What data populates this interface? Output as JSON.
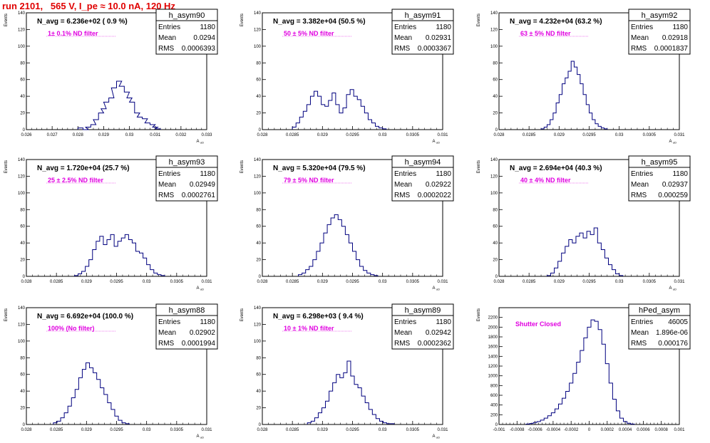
{
  "page": {
    "title": "run 2101,   565 V, I_pe ≈ 10.0 nA, 120 Hz"
  },
  "chart_data": [
    {
      "type": "histogram",
      "name": "h_asym90",
      "stats": {
        "entries_label": "Entries",
        "entries": "1180",
        "mean_label": "Mean",
        "mean": "0.0294",
        "rms_label": "RMS",
        "rms": "0.0006393"
      },
      "navg_text": "N_avg = 6.236e+02 ( 0.9 %)",
      "filter_text": "1± 0.1% ND filter",
      "xlabel": "A_uD",
      "ylabel": "Events",
      "xlim": [
        0.026,
        0.033
      ],
      "ylim": [
        0,
        140
      ],
      "xticks": [
        "0.026",
        "0.027",
        "0.028",
        "0.029",
        "0.03",
        "0.031",
        "0.032",
        "0.033"
      ],
      "yticks": [
        "0",
        "20",
        "40",
        "60",
        "80",
        "100",
        "120",
        "140"
      ],
      "bins": [
        0.028,
        0.0282,
        0.0283,
        0.0285,
        0.0286,
        0.0288,
        0.0289,
        0.029,
        0.0292,
        0.0293,
        0.0295,
        0.0296,
        0.0298,
        0.0299,
        0.03,
        0.0302,
        0.0303,
        0.0305,
        0.0306,
        0.0308,
        0.0309,
        0.031
      ],
      "counts": [
        2,
        0,
        3,
        6,
        12,
        20,
        25,
        33,
        38,
        50,
        58,
        52,
        45,
        38,
        33,
        20,
        15,
        13,
        8,
        6,
        3,
        1
      ]
    },
    {
      "type": "histogram",
      "name": "h_asym91",
      "stats": {
        "entries_label": "Entries",
        "entries": "1180",
        "mean_label": "Mean",
        "mean": "0.02931",
        "rms_label": "RMS",
        "rms": "0.0003367"
      },
      "navg_text": "N_avg = 3.382e+04 (50.5 %)",
      "filter_text": "50 ± 5% ND filter",
      "xlabel": "A_uD",
      "ylabel": "Events",
      "xlim": [
        0.028,
        0.031
      ],
      "ylim": [
        0,
        140
      ],
      "xticks": [
        "0.028",
        "0.0285",
        "0.029",
        "0.0295",
        "0.03",
        "0.0305",
        "0.031"
      ],
      "yticks": [
        "0",
        "20",
        "40",
        "60",
        "80",
        "100",
        "120",
        "140"
      ],
      "bins": [
        0.0285,
        0.02856,
        0.02862,
        0.02868,
        0.02874,
        0.0288,
        0.02886,
        0.02892,
        0.02898,
        0.02904,
        0.0291,
        0.02916,
        0.02922,
        0.02928,
        0.02934,
        0.0294,
        0.02946,
        0.02952,
        0.02958,
        0.02964,
        0.0297,
        0.02976,
        0.02982,
        0.02988,
        0.02994,
        0.03
      ],
      "counts": [
        3,
        8,
        15,
        22,
        30,
        40,
        46,
        40,
        30,
        28,
        35,
        44,
        30,
        20,
        26,
        42,
        48,
        40,
        36,
        28,
        20,
        12,
        8,
        4,
        2,
        1
      ]
    },
    {
      "type": "histogram",
      "name": "h_asym92",
      "stats": {
        "entries_label": "Entries",
        "entries": "1180",
        "mean_label": "Mean",
        "mean": "0.02918",
        "rms_label": "RMS",
        "rms": "0.0001837"
      },
      "navg_text": "N_avg = 4.232e+04 (63.2 %)",
      "filter_text": "63 ± 5% ND filter",
      "xlabel": "A_uD",
      "ylabel": "Events",
      "xlim": [
        0.028,
        0.031
      ],
      "ylim": [
        0,
        140
      ],
      "xticks": [
        "0.028",
        "0.0285",
        "0.029",
        "0.0295",
        "0.03",
        "0.0305",
        "0.031"
      ],
      "yticks": [
        "0",
        "20",
        "40",
        "60",
        "80",
        "100",
        "120",
        "140"
      ],
      "bins": [
        0.0287,
        0.02875,
        0.0288,
        0.02885,
        0.0289,
        0.02895,
        0.029,
        0.02905,
        0.0291,
        0.02915,
        0.0292,
        0.02925,
        0.0293,
        0.02935,
        0.0294,
        0.02945,
        0.0295,
        0.02955,
        0.0296,
        0.02965,
        0.0297,
        0.02975
      ],
      "counts": [
        1,
        3,
        6,
        12,
        20,
        32,
        42,
        55,
        62,
        70,
        82,
        75,
        66,
        55,
        42,
        30,
        20,
        12,
        7,
        4,
        2,
        1
      ]
    },
    {
      "type": "histogram",
      "name": "h_asym93",
      "stats": {
        "entries_label": "Entries",
        "entries": "1180",
        "mean_label": "Mean",
        "mean": "0.02949",
        "rms_label": "RMS",
        "rms": "0.0002761"
      },
      "navg_text": "N_avg = 1.720e+04 (25.7 %)",
      "filter_text": "25 ± 2.5% ND filter",
      "xlabel": "A_uD",
      "ylabel": "Events",
      "xlim": [
        0.028,
        0.031
      ],
      "ylim": [
        0,
        140
      ],
      "xticks": [
        "0.028",
        "0.0285",
        "0.029",
        "0.0295",
        "0.03",
        "0.0305",
        "0.031"
      ],
      "yticks": [
        "0",
        "20",
        "40",
        "60",
        "80",
        "100",
        "120",
        "140"
      ],
      "bins": [
        0.0288,
        0.02886,
        0.02892,
        0.02898,
        0.02904,
        0.0291,
        0.02916,
        0.02922,
        0.02928,
        0.02934,
        0.0294,
        0.02946,
        0.02952,
        0.02958,
        0.02964,
        0.0297,
        0.02976,
        0.02982,
        0.02988,
        0.02994,
        0.03,
        0.03006,
        0.03012,
        0.03018,
        0.03024
      ],
      "counts": [
        1,
        3,
        6,
        12,
        20,
        32,
        42,
        48,
        38,
        44,
        50,
        36,
        42,
        46,
        50,
        44,
        40,
        30,
        28,
        22,
        14,
        8,
        4,
        2,
        1
      ]
    },
    {
      "type": "histogram",
      "name": "h_asym94",
      "stats": {
        "entries_label": "Entries",
        "entries": "1180",
        "mean_label": "Mean",
        "mean": "0.02922",
        "rms_label": "RMS",
        "rms": "0.0002022"
      },
      "navg_text": "N_avg = 5.320e+04 (79.5 %)",
      "filter_text": "79 ± 5% ND filter",
      "xlabel": "A_uD",
      "ylabel": "Events",
      "xlim": [
        0.028,
        0.031
      ],
      "ylim": [
        0,
        140
      ],
      "xticks": [
        "0.028",
        "0.0285",
        "0.029",
        "0.0295",
        "0.03",
        "0.0305",
        "0.031"
      ],
      "yticks": [
        "0",
        "20",
        "40",
        "60",
        "80",
        "100",
        "120",
        "140"
      ],
      "bins": [
        0.0286,
        0.02866,
        0.02872,
        0.02878,
        0.02884,
        0.0289,
        0.02896,
        0.02902,
        0.02908,
        0.02914,
        0.0292,
        0.02926,
        0.02932,
        0.02938,
        0.02944,
        0.0295,
        0.02956,
        0.02962,
        0.02968,
        0.02974,
        0.0298,
        0.02986
      ],
      "counts": [
        2,
        4,
        8,
        12,
        20,
        30,
        40,
        52,
        62,
        70,
        74,
        68,
        60,
        50,
        40,
        30,
        20,
        12,
        7,
        4,
        2,
        1
      ]
    },
    {
      "type": "histogram",
      "name": "h_asym95",
      "stats": {
        "entries_label": "Entries",
        "entries": "1180",
        "mean_label": "Mean",
        "mean": "0.02937",
        "rms_label": "RMS",
        "rms": "0.000259"
      },
      "navg_text": "N_avg = 2.694e+04 (40.3 %)",
      "filter_text": "40 ± 4% ND filter",
      "xlabel": "A_uD",
      "ylabel": "Events",
      "xlim": [
        0.028,
        0.031
      ],
      "ylim": [
        0,
        140
      ],
      "xticks": [
        "0.028",
        "0.0285",
        "0.029",
        "0.0295",
        "0.03",
        "0.0305",
        "0.031"
      ],
      "yticks": [
        "0",
        "20",
        "40",
        "60",
        "80",
        "100",
        "120",
        "140"
      ],
      "bins": [
        0.0288,
        0.02886,
        0.02892,
        0.02898,
        0.02904,
        0.0291,
        0.02916,
        0.02922,
        0.02928,
        0.02934,
        0.0294,
        0.02946,
        0.02952,
        0.02958,
        0.02964,
        0.0297,
        0.02976,
        0.02982,
        0.02988,
        0.02994,
        0.03
      ],
      "counts": [
        1,
        4,
        10,
        18,
        28,
        36,
        44,
        40,
        48,
        52,
        46,
        54,
        50,
        58,
        40,
        32,
        22,
        14,
        8,
        3,
        1
      ]
    },
    {
      "type": "histogram",
      "name": "h_asym88",
      "stats": {
        "entries_label": "Entries",
        "entries": "1180",
        "mean_label": "Mean",
        "mean": "0.02902",
        "rms_label": "RMS",
        "rms": "0.0001994"
      },
      "navg_text": "N_avg = 6.692e+04 (100.0 %)",
      "filter_text": "100% (No filter)",
      "xlabel": "A_uD",
      "ylabel": "Events",
      "xlim": [
        0.028,
        0.031
      ],
      "ylim": [
        0,
        140
      ],
      "xticks": [
        "0.028",
        "0.0285",
        "0.029",
        "0.0295",
        "0.03",
        "0.0305",
        "0.031"
      ],
      "yticks": [
        "0",
        "20",
        "40",
        "60",
        "80",
        "100",
        "120",
        "140"
      ],
      "bins": [
        0.02845,
        0.02851,
        0.02857,
        0.02863,
        0.02869,
        0.02875,
        0.02881,
        0.02887,
        0.02893,
        0.02899,
        0.02905,
        0.02911,
        0.02917,
        0.02923,
        0.02929,
        0.02935,
        0.02941,
        0.02947,
        0.02953,
        0.02959,
        0.02965
      ],
      "counts": [
        2,
        4,
        8,
        14,
        22,
        32,
        42,
        56,
        66,
        74,
        68,
        62,
        54,
        44,
        36,
        26,
        18,
        10,
        5,
        2,
        1
      ]
    },
    {
      "type": "histogram",
      "name": "h_asym89",
      "stats": {
        "entries_label": "Entries",
        "entries": "1180",
        "mean_label": "Mean",
        "mean": "0.02942",
        "rms_label": "RMS",
        "rms": "0.0002362"
      },
      "navg_text": "N_avg = 6.298e+03 ( 9.4 %)",
      "filter_text": "10 ± 1% ND filter",
      "xlabel": "A_uD",
      "ylabel": "Events",
      "xlim": [
        0.028,
        0.031
      ],
      "ylim": [
        0,
        140
      ],
      "xticks": [
        "0.028",
        "0.0285",
        "0.029",
        "0.0295",
        "0.03",
        "0.0305",
        "0.031"
      ],
      "yticks": [
        "0",
        "20",
        "40",
        "60",
        "80",
        "100",
        "120",
        "140"
      ],
      "bins": [
        0.02875,
        0.02881,
        0.02887,
        0.02893,
        0.02899,
        0.02905,
        0.02911,
        0.02917,
        0.02923,
        0.02929,
        0.02935,
        0.02941,
        0.02947,
        0.02953,
        0.02959,
        0.02965,
        0.02971,
        0.02977,
        0.02983,
        0.02989,
        0.02995,
        0.03001,
        0.03007,
        0.03013
      ],
      "counts": [
        2,
        4,
        8,
        14,
        20,
        28,
        40,
        50,
        60,
        56,
        62,
        76,
        58,
        48,
        44,
        34,
        26,
        18,
        12,
        7,
        4,
        2,
        1,
        1
      ]
    },
    {
      "type": "histogram",
      "name": "hPed_asym",
      "stats": {
        "entries_label": "Entries",
        "entries": "46005",
        "mean_label": "Mean",
        "mean": "1.896e-06",
        "rms_label": "RMS",
        "rms": "0.000176"
      },
      "navg_text": "",
      "filter_text": "Shutter Closed",
      "xlabel": "",
      "ylabel": "Events",
      "xlim": [
        -0.001,
        0.001
      ],
      "ylim": [
        0,
        2400
      ],
      "xticks": [
        "-0.001",
        "-0.0008",
        "-0.0006",
        "-0.0004",
        "-0.0002",
        "0",
        "0.0002",
        "0.0004",
        "0.0006",
        "0.0008",
        "0.001"
      ],
      "yticks": [
        "0",
        "200",
        "400",
        "600",
        "800",
        "1000",
        "1200",
        "1400",
        "1600",
        "1800",
        "2000",
        "2200"
      ],
      "bins": [
        -0.0007,
        -0.00066,
        -0.00062,
        -0.00058,
        -0.00054,
        -0.0005,
        -0.00046,
        -0.00042,
        -0.00038,
        -0.00034,
        -0.0003,
        -0.00026,
        -0.00022,
        -0.00018,
        -0.00014,
        -0.0001,
        -6e-05,
        -2e-05,
        2e-05,
        6e-05,
        0.0001,
        0.00014,
        0.00018,
        0.00022,
        0.00026,
        0.0003,
        0.00034,
        0.00038,
        0.00042,
        0.00046
      ],
      "counts": [
        10,
        20,
        40,
        60,
        90,
        130,
        180,
        240,
        320,
        420,
        540,
        680,
        850,
        1050,
        1280,
        1520,
        1780,
        2000,
        2150,
        2120,
        1950,
        1650,
        1250,
        850,
        520,
        280,
        130,
        60,
        25,
        10
      ]
    }
  ]
}
